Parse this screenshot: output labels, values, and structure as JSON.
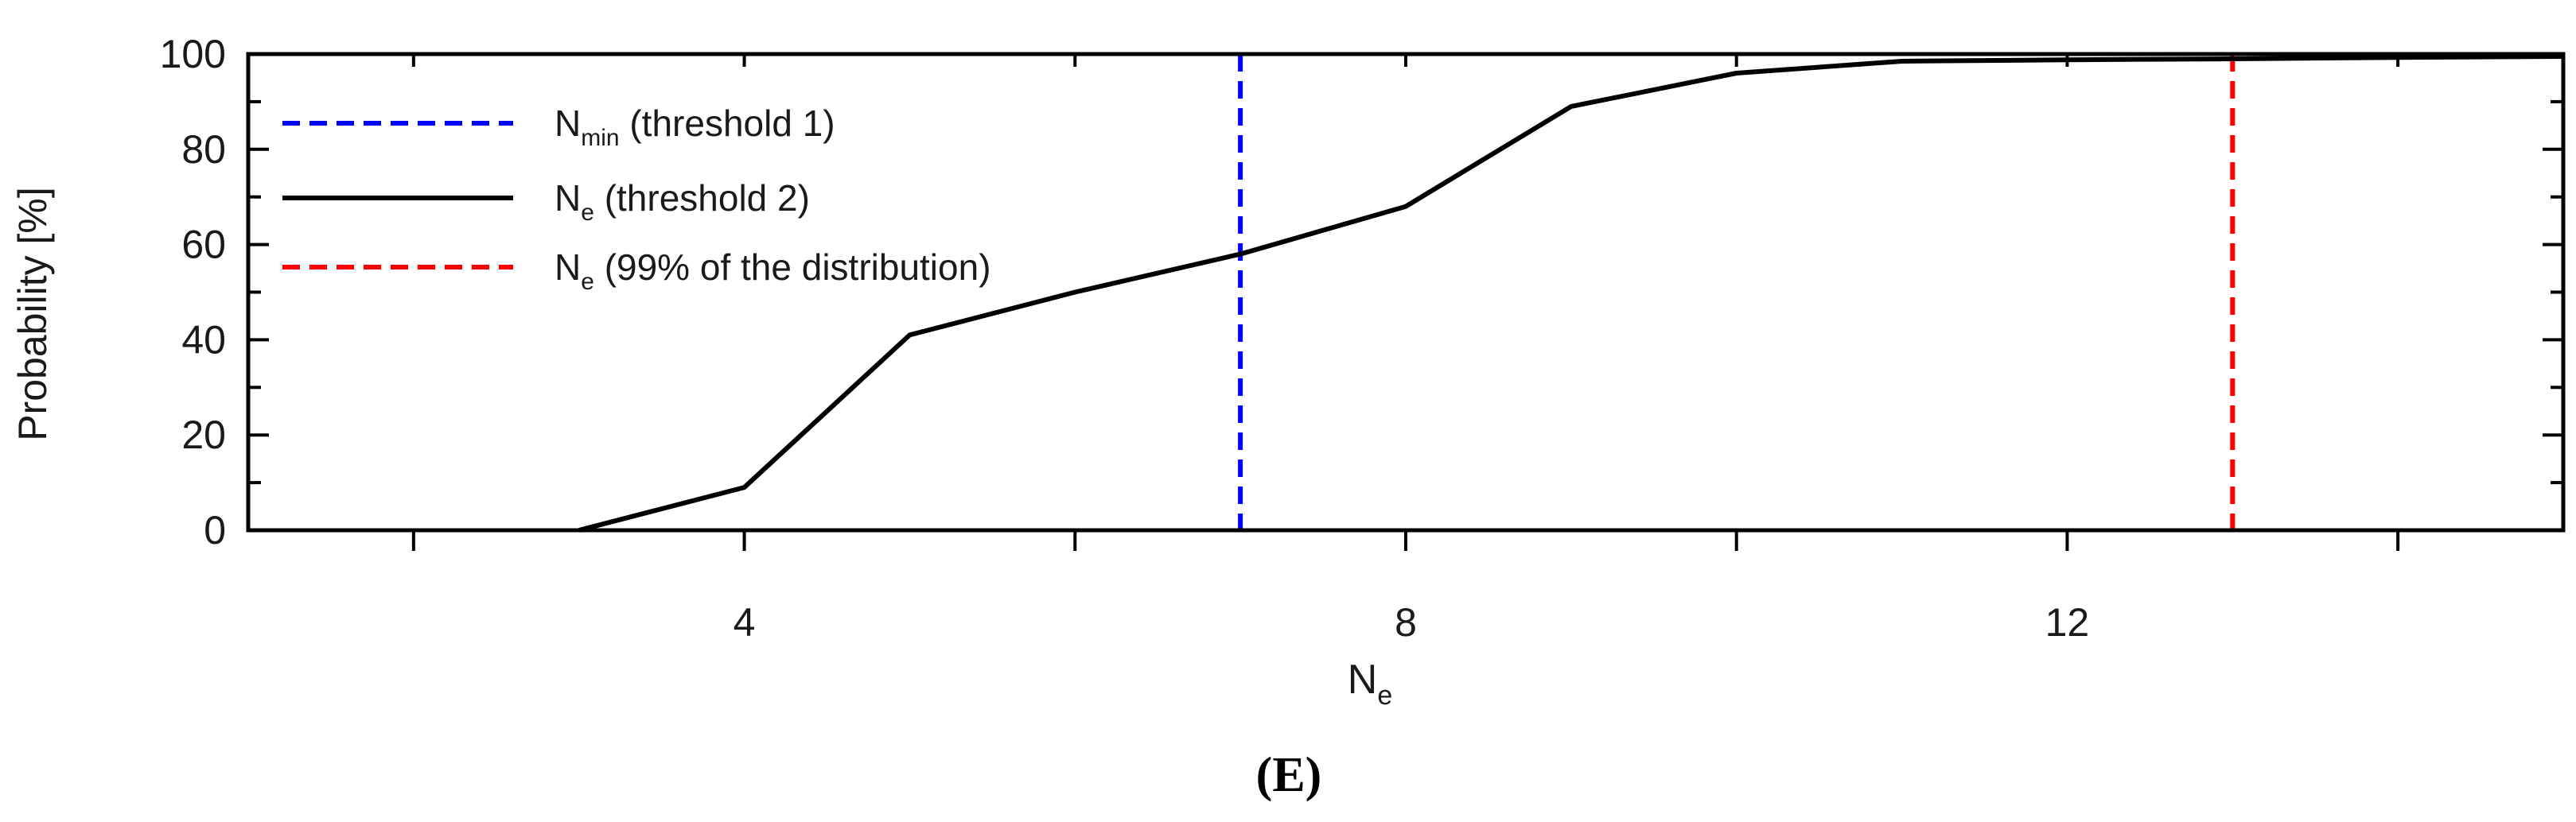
{
  "chart_data": {
    "type": "line",
    "title": "",
    "xlabel": "N",
    "xlabel_sub": "e",
    "ylabel": "Probability [%]",
    "xlim": [
      1,
      15
    ],
    "ylim": [
      0,
      100
    ],
    "x_ticks": [
      4,
      8,
      12
    ],
    "y_ticks": [
      0,
      20,
      40,
      60,
      80,
      100
    ],
    "grid": false,
    "legend_position": "top-left",
    "series": [
      {
        "style": "solid",
        "color": "#000000",
        "x": [
          3,
          4,
          5,
          6,
          7,
          8,
          9,
          10,
          11,
          12,
          13,
          14,
          15
        ],
        "y": [
          0,
          9,
          41,
          50,
          58,
          68,
          89,
          96,
          98.5,
          98.8,
          99,
          99.3,
          99.5
        ]
      }
    ],
    "vlines": [
      {
        "x": 7,
        "color": "#0000ff",
        "style": "dashed"
      },
      {
        "x": 13,
        "color": "#ff0000",
        "style": "dashed"
      }
    ],
    "legend": [
      {
        "base": "N",
        "sub": "min",
        "text": " (threshold 1)",
        "color": "#0000ff",
        "style": "dashed"
      },
      {
        "base": "N",
        "sub": "e",
        "text": " (threshold 2)",
        "color": "#000000",
        "style": "solid"
      },
      {
        "base": "N",
        "sub": "e",
        "text": " (99% of the distribution)",
        "color": "#ff0000",
        "style": "dashed"
      }
    ],
    "panel_label": "(E)"
  }
}
